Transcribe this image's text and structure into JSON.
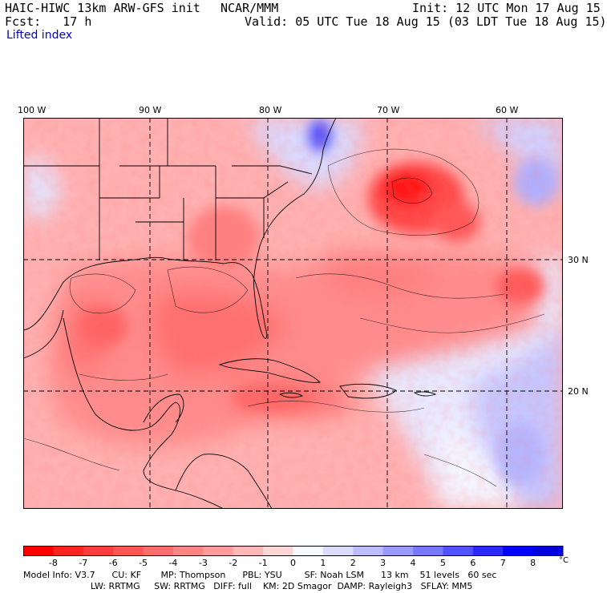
{
  "header": {
    "model": "HAIC-HIWC 13km ARW-GFS init",
    "org": "NCAR/MMM",
    "init": "Init: 12 UTC Mon 17 Aug 15",
    "fcst": "Fcst:   17 h",
    "valid": "Valid: 05 UTC Tue 18 Aug 15 (03 LDT Tue 18 Aug 15)",
    "field": "Lifted index"
  },
  "map": {
    "lon_labels": [
      "100 W",
      "90 W",
      "80 W",
      "70 W",
      "60 W"
    ],
    "lat_labels": [
      "30 N",
      "20 N"
    ]
  },
  "colorbar": {
    "labels": [
      "-8",
      "-7",
      "-6",
      "-5",
      "-4",
      "-3",
      "-2",
      "-1",
      "0",
      "1",
      "2",
      "3",
      "4",
      "5",
      "6",
      "7",
      "8"
    ],
    "unit": "°C",
    "colors": [
      "#ff0000",
      "#ff2222",
      "#ff3d3d",
      "#ff5555",
      "#ff6c6c",
      "#ff8585",
      "#ff9d9d",
      "#ffb8b8",
      "#ffd6d6",
      "#f8f8ff",
      "#dcdcff",
      "#bcbcff",
      "#9a9aff",
      "#7777ff",
      "#5252ff",
      "#2a2aff",
      "#0000ff",
      "#0000dd"
    ]
  },
  "footer": {
    "line1": "Model Info: V3.7      CU: KF       MP: Thompson      PBL: YSU        SF: Noah LSM      13 km    51 levels   60 sec",
    "line2": "                        LW: RRTMG     SW: RRTMG   DIFF: full    KM: 2D Smagor  DAMP: Rayleigh3   SFLAY: MM5"
  }
}
